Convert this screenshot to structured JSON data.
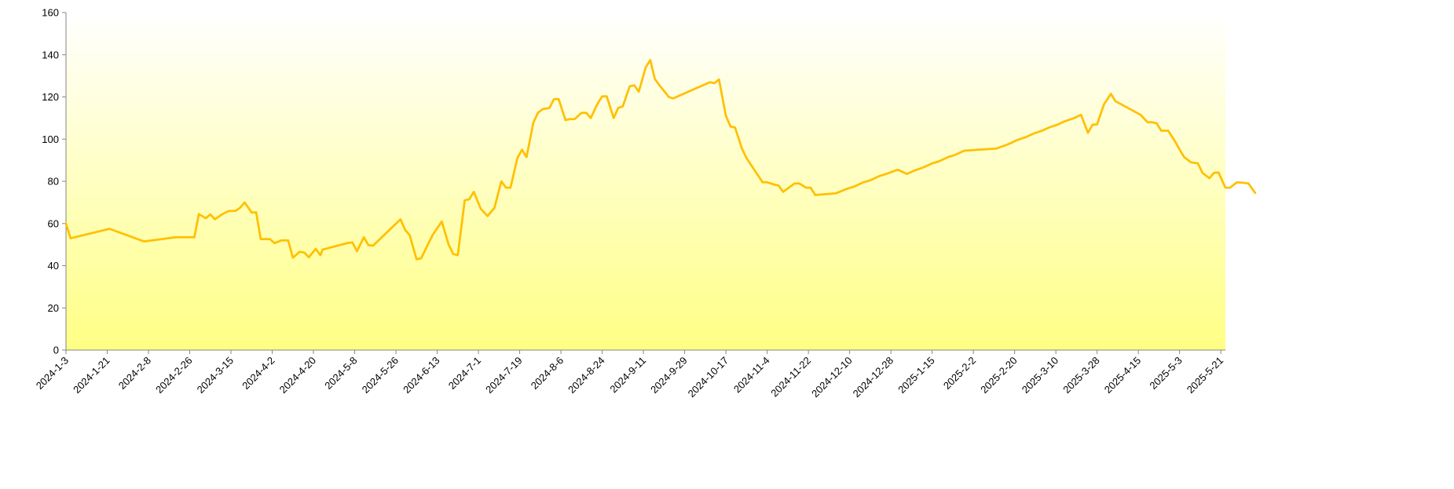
{
  "chart_data": {
    "type": "area",
    "title": "",
    "xlabel": "",
    "ylabel": "",
    "ylim": [
      0,
      160
    ],
    "yticks": [
      0,
      20,
      40,
      60,
      80,
      100,
      120,
      140,
      160
    ],
    "x_tick_labels": [
      "2024-1-3",
      "2024-1-21",
      "2024-2-8",
      "2024-2-26",
      "2024-3-15",
      "2024-4-2",
      "2024-4-20",
      "2024-5-8",
      "2024-5-26",
      "2024-6-13",
      "2024-7-1",
      "2024-7-19",
      "2024-8-6",
      "2024-8-24",
      "2024-9-11",
      "2024-9-29",
      "2024-10-17",
      "2024-11-4",
      "2024-11-22",
      "2024-12-10",
      "2024-12-28",
      "2025-1-15",
      "2025-2-2",
      "2025-2-20",
      "2025-3-10",
      "2025-3-28",
      "2025-4-15",
      "2025-5-3",
      "2025-5-21"
    ],
    "x_range": [
      "2024-01-03",
      "2025-05-23"
    ],
    "grid": false,
    "legend": "none",
    "series": [
      {
        "line_color": "#FFC000",
        "fill_top": "#FFFFFF",
        "fill_bottom": "#FFFF85",
        "points": [
          [
            "2024-01-03",
            60
          ],
          [
            "2024-01-05",
            53
          ],
          [
            "2024-01-22",
            57.5
          ],
          [
            "2024-02-06",
            51.5
          ],
          [
            "2024-02-20",
            53.5
          ],
          [
            "2024-02-26",
            53.5
          ],
          [
            "2024-02-28",
            53.5
          ],
          [
            "2024-03-01",
            64.5
          ],
          [
            "2024-03-04",
            62.5
          ],
          [
            "2024-03-06",
            64.3
          ],
          [
            "2024-03-08",
            62
          ],
          [
            "2024-03-11",
            64.3
          ],
          [
            "2024-03-14",
            65.9
          ],
          [
            "2024-03-17",
            66
          ],
          [
            "2024-03-19",
            67.5
          ],
          [
            "2024-03-21",
            70
          ],
          [
            "2024-03-24",
            65.2
          ],
          [
            "2024-03-26",
            65.3
          ],
          [
            "2024-03-28",
            52.6
          ],
          [
            "2024-04-01",
            52.6
          ],
          [
            "2024-04-03",
            50.7
          ],
          [
            "2024-04-06",
            52
          ],
          [
            "2024-04-09",
            52
          ],
          [
            "2024-04-11",
            43.8
          ],
          [
            "2024-04-14",
            46.6
          ],
          [
            "2024-04-16",
            46.2
          ],
          [
            "2024-04-18",
            44
          ],
          [
            "2024-04-21",
            48
          ],
          [
            "2024-04-23",
            45
          ],
          [
            "2024-04-24",
            47.6
          ],
          [
            "2024-05-05",
            50.8
          ],
          [
            "2024-05-07",
            51
          ],
          [
            "2024-05-09",
            46.9
          ],
          [
            "2024-05-12",
            53.5
          ],
          [
            "2024-05-14",
            49.8
          ],
          [
            "2024-05-16",
            49.5
          ],
          [
            "2024-05-28",
            62
          ],
          [
            "2024-05-30",
            57
          ],
          [
            "2024-06-01",
            54.5
          ],
          [
            "2024-06-04",
            43
          ],
          [
            "2024-06-06",
            43.5
          ],
          [
            "2024-06-11",
            54.5
          ],
          [
            "2024-06-15",
            61
          ],
          [
            "2024-06-18",
            50
          ],
          [
            "2024-06-20",
            45.5
          ],
          [
            "2024-06-22",
            45
          ],
          [
            "2024-06-25",
            71
          ],
          [
            "2024-06-27",
            71.5
          ],
          [
            "2024-06-29",
            75
          ],
          [
            "2024-07-02",
            67
          ],
          [
            "2024-07-05",
            63.5
          ],
          [
            "2024-07-08",
            67.5
          ],
          [
            "2024-07-11",
            80
          ],
          [
            "2024-07-13",
            77
          ],
          [
            "2024-07-15",
            77
          ],
          [
            "2024-07-18",
            91
          ],
          [
            "2024-07-20",
            95
          ],
          [
            "2024-07-22",
            91.5
          ],
          [
            "2024-07-25",
            108
          ],
          [
            "2024-07-27",
            112.5
          ],
          [
            "2024-07-29",
            114.2
          ],
          [
            "2024-08-01",
            114.8
          ],
          [
            "2024-08-03",
            119
          ],
          [
            "2024-08-05",
            119
          ],
          [
            "2024-08-08",
            109
          ],
          [
            "2024-08-10",
            109.5
          ],
          [
            "2024-08-12",
            109.5
          ],
          [
            "2024-08-15",
            112.5
          ],
          [
            "2024-08-17",
            112.5
          ],
          [
            "2024-08-19",
            110
          ],
          [
            "2024-08-22",
            116.8
          ],
          [
            "2024-08-24",
            120.3
          ],
          [
            "2024-08-26",
            120.3
          ],
          [
            "2024-08-29",
            110
          ],
          [
            "2024-08-31",
            114.8
          ],
          [
            "2024-09-02",
            115.5
          ],
          [
            "2024-09-05",
            125
          ],
          [
            "2024-09-07",
            125.5
          ],
          [
            "2024-09-09",
            122.5
          ],
          [
            "2024-09-12",
            134
          ],
          [
            "2024-09-14",
            137.5
          ],
          [
            "2024-09-16",
            128.5
          ],
          [
            "2024-09-18",
            125.5
          ],
          [
            "2024-09-21",
            121.5
          ],
          [
            "2024-09-22",
            120
          ],
          [
            "2024-09-24",
            119.3
          ],
          [
            "2024-10-10",
            127
          ],
          [
            "2024-10-12",
            126.5
          ],
          [
            "2024-10-14",
            128.3
          ],
          [
            "2024-10-17",
            111
          ],
          [
            "2024-10-19",
            106
          ],
          [
            "2024-10-21",
            105.5
          ],
          [
            "2024-10-24",
            95.5
          ],
          [
            "2024-10-26",
            91
          ],
          [
            "2024-11-02",
            79.5
          ],
          [
            "2024-11-04",
            79.5
          ],
          [
            "2024-11-07",
            78.5
          ],
          [
            "2024-11-09",
            78
          ],
          [
            "2024-11-11",
            75
          ],
          [
            "2024-11-16",
            79
          ],
          [
            "2024-11-18",
            79
          ],
          [
            "2024-11-21",
            77
          ],
          [
            "2024-11-23",
            77
          ],
          [
            "2024-11-25",
            73.5
          ],
          [
            "2024-12-04",
            74.3
          ],
          [
            "2024-12-09",
            76.5
          ],
          [
            "2024-12-12",
            77.5
          ],
          [
            "2024-12-16",
            79.5
          ],
          [
            "2024-12-19",
            80.5
          ],
          [
            "2024-12-23",
            82.5
          ],
          [
            "2024-12-26",
            83.5
          ],
          [
            "2024-12-31",
            85.5
          ],
          [
            "2025-01-04",
            83.5
          ],
          [
            "2025-01-07",
            85
          ],
          [
            "2025-01-11",
            86.5
          ],
          [
            "2025-01-15",
            88.5
          ],
          [
            "2025-01-18",
            89.5
          ],
          [
            "2025-01-22",
            91.5
          ],
          [
            "2025-01-25",
            92.5
          ],
          [
            "2025-01-29",
            94.5
          ],
          [
            "2025-02-12",
            95.5
          ],
          [
            "2025-02-17",
            97.5
          ],
          [
            "2025-02-21",
            99.5
          ],
          [
            "2025-02-25",
            101
          ],
          [
            "2025-02-28",
            102.5
          ],
          [
            "2025-03-04",
            104
          ],
          [
            "2025-03-07",
            105.5
          ],
          [
            "2025-03-11",
            107
          ],
          [
            "2025-03-14",
            108.5
          ],
          [
            "2025-03-18",
            110
          ],
          [
            "2025-03-21",
            111.5
          ],
          [
            "2025-03-24",
            103
          ],
          [
            "2025-03-26",
            106.8
          ],
          [
            "2025-03-28",
            107
          ],
          [
            "2025-03-31",
            116.5
          ],
          [
            "2025-04-03",
            121.5
          ],
          [
            "2025-04-05",
            118
          ],
          [
            "2025-04-16",
            111.5
          ],
          [
            "2025-04-19",
            108
          ],
          [
            "2025-04-21",
            108
          ],
          [
            "2025-04-23",
            107.5
          ],
          [
            "2025-04-25",
            104
          ],
          [
            "2025-04-28",
            104
          ],
          [
            "2025-05-01",
            99
          ],
          [
            "2025-05-03",
            95
          ],
          [
            "2025-05-05",
            91.5
          ],
          [
            "2025-05-08",
            89
          ],
          [
            "2025-05-11",
            88.5
          ],
          [
            "2025-05-13",
            84
          ],
          [
            "2025-05-16",
            81.5
          ],
          [
            "2025-05-18",
            84
          ],
          [
            "2025-05-20",
            84.2
          ],
          [
            "2025-05-23",
            77
          ],
          [
            "2025-05-25",
            77
          ],
          [
            "2025-05-28",
            79.5
          ],
          [
            "2025-05-31",
            79.3
          ],
          [
            "2025-06-02",
            79
          ],
          [
            "2025-06-05",
            74.5
          ]
        ]
      }
    ]
  }
}
